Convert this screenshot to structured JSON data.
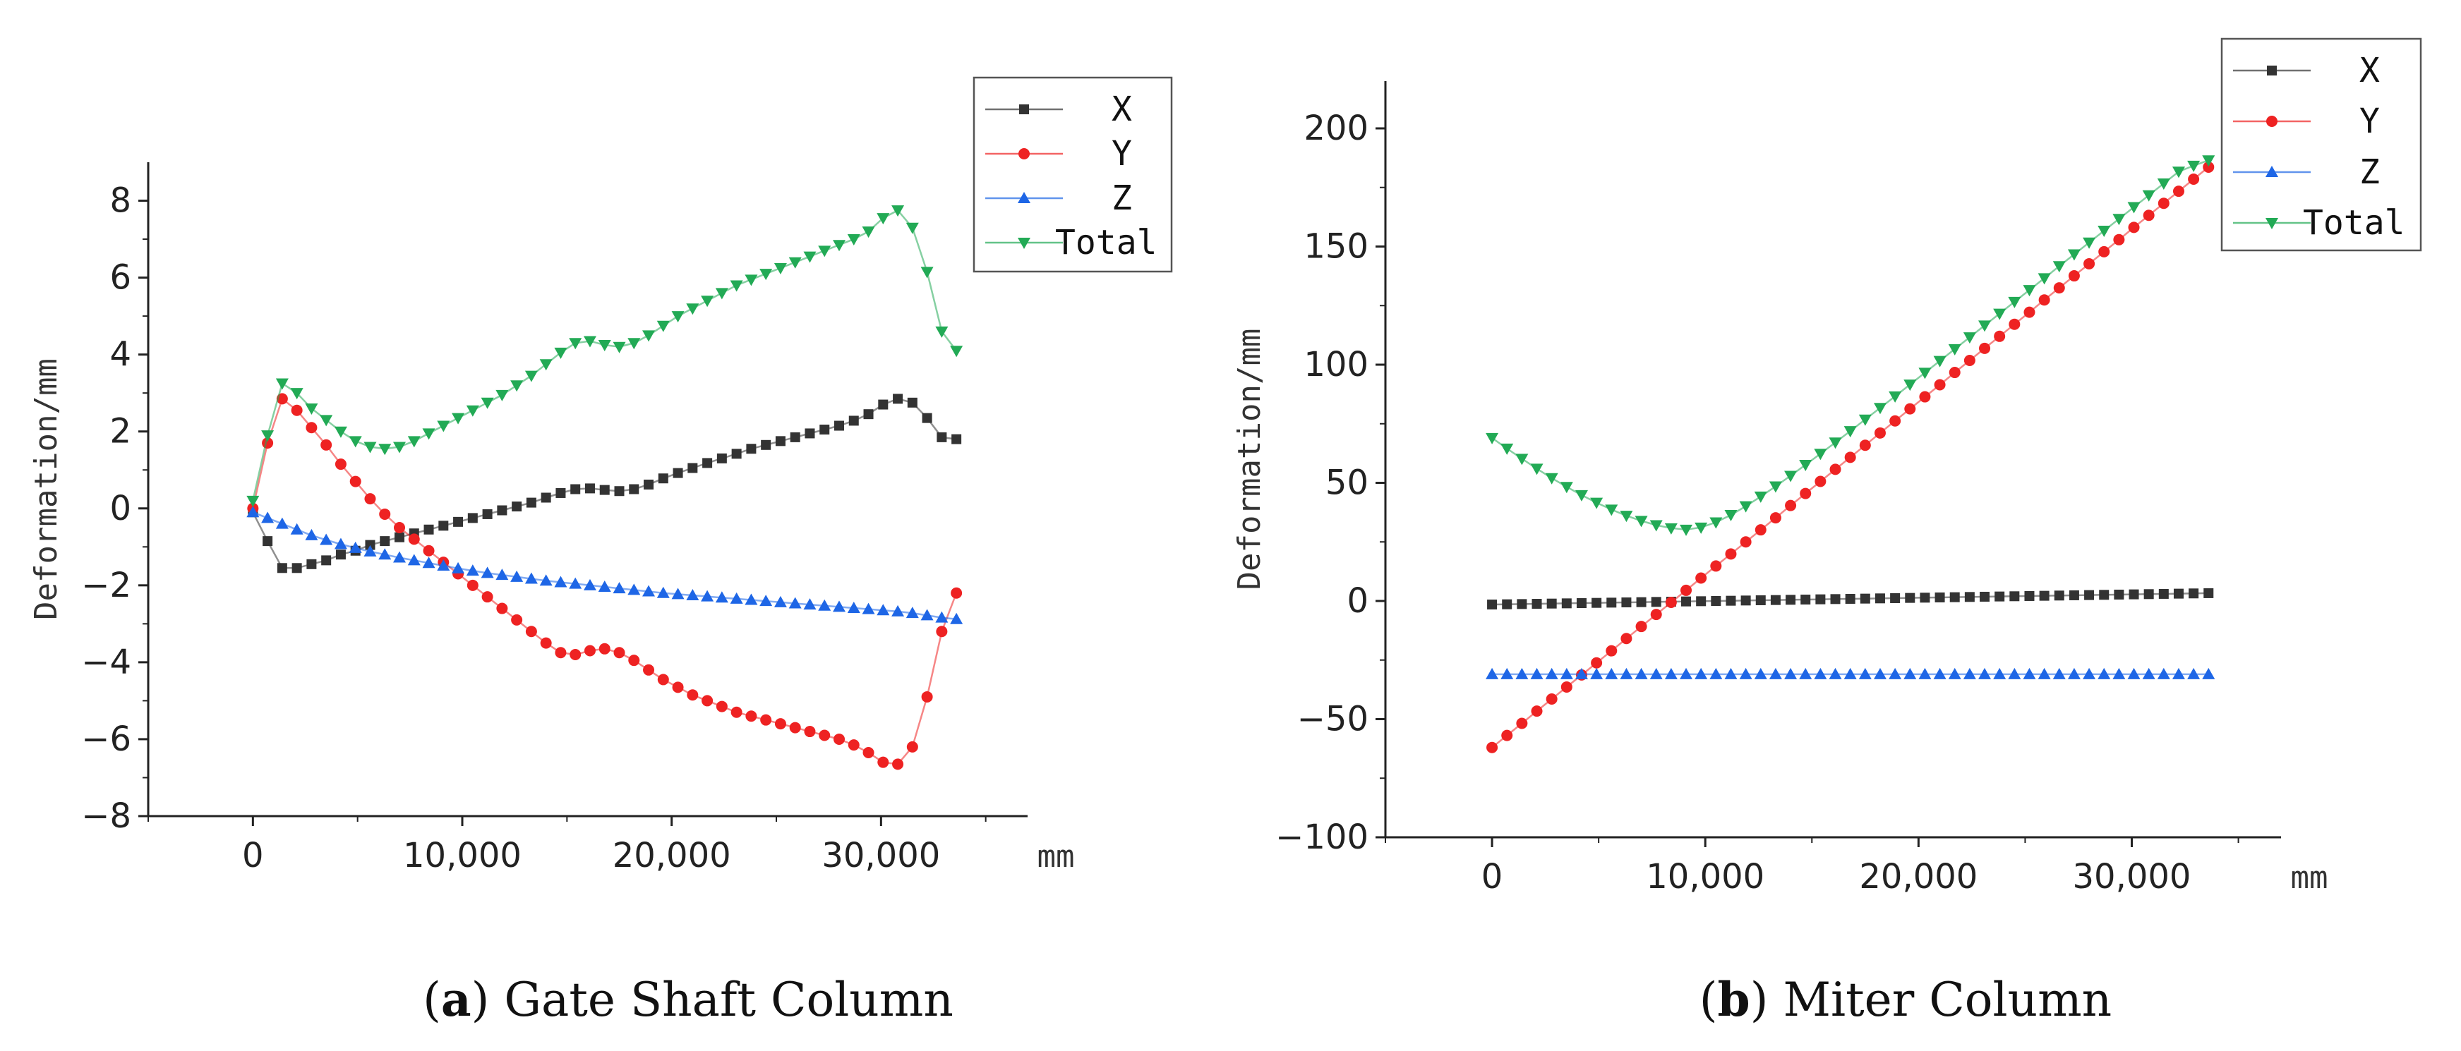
{
  "chart_data": [
    {
      "type": "line",
      "caption_letter": "a",
      "caption_text": "Gate Shaft Column",
      "ylabel": "Deformation/mm",
      "xunit": "mm",
      "xlim": [
        -5000,
        37000
      ],
      "ylim": [
        -8,
        9
      ],
      "xticks": [
        0,
        10000,
        20000,
        30000
      ],
      "xtick_labels": [
        "0",
        "10,000",
        "20,000",
        "30,000"
      ],
      "yticks": [
        -8,
        -6,
        -4,
        -2,
        0,
        2,
        4,
        6,
        8
      ],
      "ytick_labels": [
        "−8",
        "−6",
        "−4",
        "−2",
        "0",
        "2",
        "4",
        "6",
        "8"
      ],
      "legend_position": "top-right",
      "x": [
        0,
        700,
        1400,
        2100,
        2800,
        3500,
        4200,
        4900,
        5600,
        6300,
        7000,
        7700,
        8400,
        9100,
        9800,
        10500,
        11200,
        11900,
        12600,
        13300,
        14000,
        14700,
        15400,
        16100,
        16800,
        17500,
        18200,
        18900,
        19600,
        20300,
        21000,
        21700,
        22400,
        23100,
        23800,
        24500,
        25200,
        25900,
        26600,
        27300,
        28000,
        28700,
        29400,
        30100,
        30800,
        31500,
        32200,
        32900,
        33600
      ],
      "series": [
        {
          "name": "X",
          "color": "#333333",
          "marker": "square",
          "values": [
            -0.1,
            -0.85,
            -1.55,
            -1.55,
            -1.45,
            -1.35,
            -1.2,
            -1.1,
            -0.95,
            -0.85,
            -0.75,
            -0.65,
            -0.55,
            -0.45,
            -0.35,
            -0.25,
            -0.15,
            -0.05,
            0.05,
            0.15,
            0.28,
            0.4,
            0.5,
            0.52,
            0.48,
            0.45,
            0.5,
            0.62,
            0.78,
            0.92,
            1.05,
            1.18,
            1.3,
            1.42,
            1.55,
            1.65,
            1.75,
            1.85,
            1.95,
            2.05,
            2.15,
            2.28,
            2.45,
            2.7,
            2.85,
            2.75,
            2.35,
            1.85,
            1.8
          ]
        },
        {
          "name": "Y",
          "color": "#ee2222",
          "marker": "circle",
          "values": [
            0.0,
            1.7,
            2.85,
            2.55,
            2.1,
            1.65,
            1.15,
            0.7,
            0.25,
            -0.15,
            -0.5,
            -0.8,
            -1.1,
            -1.4,
            -1.7,
            -2.0,
            -2.3,
            -2.6,
            -2.9,
            -3.2,
            -3.5,
            -3.75,
            -3.8,
            -3.7,
            -3.65,
            -3.75,
            -3.95,
            -4.2,
            -4.45,
            -4.65,
            -4.85,
            -5.0,
            -5.15,
            -5.3,
            -5.4,
            -5.5,
            -5.6,
            -5.7,
            -5.8,
            -5.9,
            -6.0,
            -6.15,
            -6.35,
            -6.6,
            -6.65,
            -6.2,
            -4.9,
            -3.2,
            -2.2
          ]
        },
        {
          "name": "Z",
          "color": "#1e66e6",
          "marker": "triangle-up",
          "values": [
            -0.1,
            -0.25,
            -0.4,
            -0.55,
            -0.7,
            -0.82,
            -0.93,
            -1.03,
            -1.12,
            -1.2,
            -1.28,
            -1.35,
            -1.42,
            -1.49,
            -1.56,
            -1.62,
            -1.68,
            -1.73,
            -1.78,
            -1.83,
            -1.88,
            -1.92,
            -1.96,
            -2.0,
            -2.04,
            -2.08,
            -2.12,
            -2.16,
            -2.2,
            -2.23,
            -2.26,
            -2.29,
            -2.32,
            -2.35,
            -2.38,
            -2.41,
            -2.44,
            -2.47,
            -2.5,
            -2.53,
            -2.56,
            -2.59,
            -2.62,
            -2.65,
            -2.68,
            -2.72,
            -2.78,
            -2.84,
            -2.88
          ]
        },
        {
          "name": "Total",
          "color": "#22aa55",
          "marker": "triangle-down",
          "values": [
            0.2,
            1.9,
            3.25,
            3.0,
            2.6,
            2.3,
            2.0,
            1.75,
            1.6,
            1.55,
            1.6,
            1.75,
            1.95,
            2.15,
            2.35,
            2.55,
            2.75,
            2.95,
            3.2,
            3.45,
            3.75,
            4.05,
            4.3,
            4.35,
            4.25,
            4.2,
            4.3,
            4.5,
            4.75,
            5.0,
            5.2,
            5.4,
            5.6,
            5.8,
            5.95,
            6.1,
            6.25,
            6.4,
            6.55,
            6.7,
            6.85,
            7.0,
            7.2,
            7.55,
            7.75,
            7.3,
            6.15,
            4.6,
            4.1
          ]
        }
      ]
    },
    {
      "type": "line",
      "caption_letter": "b",
      "caption_text": "Miter Column",
      "ylabel": "Deformation/mm",
      "xunit": "mm",
      "xlim": [
        -5000,
        37000
      ],
      "ylim": [
        -100,
        220
      ],
      "xticks": [
        0,
        10000,
        20000,
        30000
      ],
      "xtick_labels": [
        "0",
        "10,000",
        "20,000",
        "30,000"
      ],
      "yticks": [
        -100,
        -50,
        0,
        50,
        100,
        150,
        200
      ],
      "ytick_labels": [
        "−100",
        "−50",
        "0",
        "50",
        "100",
        "150",
        "200"
      ],
      "legend_position": "top-right",
      "x": [
        0,
        700,
        1400,
        2100,
        2800,
        3500,
        4200,
        4900,
        5600,
        6300,
        7000,
        7700,
        8400,
        9100,
        9800,
        10500,
        11200,
        11900,
        12600,
        13300,
        14000,
        14700,
        15400,
        16100,
        16800,
        17500,
        18200,
        18900,
        19600,
        20300,
        21000,
        21700,
        22400,
        23100,
        23800,
        24500,
        25200,
        25900,
        26600,
        27300,
        28000,
        28700,
        29400,
        30100,
        30800,
        31500,
        32200,
        32900,
        33600
      ],
      "series": [
        {
          "name": "X",
          "color": "#333333",
          "marker": "square",
          "values": [
            -1.5,
            -1.4,
            -1.3,
            -1.2,
            -1.1,
            -1.0,
            -0.9,
            -0.8,
            -0.7,
            -0.6,
            -0.5,
            -0.4,
            -0.3,
            -0.2,
            -0.1,
            0.0,
            0.1,
            0.2,
            0.3,
            0.4,
            0.5,
            0.6,
            0.7,
            0.8,
            0.9,
            1.0,
            1.1,
            1.2,
            1.3,
            1.4,
            1.5,
            1.6,
            1.7,
            1.8,
            1.9,
            2.0,
            2.1,
            2.2,
            2.3,
            2.4,
            2.5,
            2.6,
            2.7,
            2.8,
            2.9,
            3.0,
            3.1,
            3.2,
            3.3
          ]
        },
        {
          "name": "Y",
          "color": "#ee2222",
          "marker": "circle",
          "values": [
            -62,
            -56.9,
            -51.8,
            -46.6,
            -41.5,
            -36.4,
            -31.3,
            -26.2,
            -21.1,
            -15.9,
            -10.8,
            -5.7,
            -0.6,
            4.5,
            9.7,
            14.8,
            19.9,
            25.0,
            30.1,
            35.2,
            40.4,
            45.5,
            50.6,
            55.7,
            60.8,
            65.9,
            71.1,
            76.2,
            81.3,
            86.4,
            91.5,
            96.7,
            101.8,
            106.9,
            112.0,
            117.1,
            122.2,
            127.4,
            132.5,
            137.6,
            142.7,
            147.8,
            152.9,
            158.1,
            163.2,
            168.3,
            173.4,
            178.5,
            183.6
          ]
        },
        {
          "name": "Z",
          "color": "#1e66e6",
          "marker": "triangle-up",
          "values": [
            -31,
            -31,
            -31,
            -31,
            -31,
            -31,
            -31,
            -31,
            -31,
            -31,
            -31,
            -31,
            -31,
            -31,
            -31,
            -31,
            -31,
            -31,
            -31,
            -31,
            -31,
            -31,
            -31,
            -31,
            -31,
            -31,
            -31,
            -31,
            -31,
            -31,
            -31,
            -31,
            -31,
            -31,
            -31,
            -31,
            -31,
            -31,
            -31,
            -31,
            -31,
            -31,
            -31,
            -31,
            -31,
            -31,
            -31,
            -31,
            -31
          ]
        },
        {
          "name": "Total",
          "color": "#22aa55",
          "marker": "triangle-down",
          "values": [
            69,
            64.5,
            60.2,
            56.0,
            52.0,
            48.3,
            44.8,
            41.6,
            38.7,
            36.1,
            33.9,
            32.1,
            30.8,
            30.2,
            31.1,
            33.3,
            36.4,
            40.1,
            44.2,
            48.5,
            53.0,
            57.6,
            62.3,
            67.1,
            71.9,
            76.8,
            81.7,
            86.6,
            91.6,
            96.6,
            101.6,
            106.6,
            111.6,
            116.6,
            121.6,
            126.6,
            131.6,
            136.6,
            141.7,
            146.7,
            151.7,
            156.7,
            161.7,
            166.7,
            171.7,
            176.7,
            181.7,
            184.2,
            186.5
          ]
        }
      ]
    }
  ]
}
